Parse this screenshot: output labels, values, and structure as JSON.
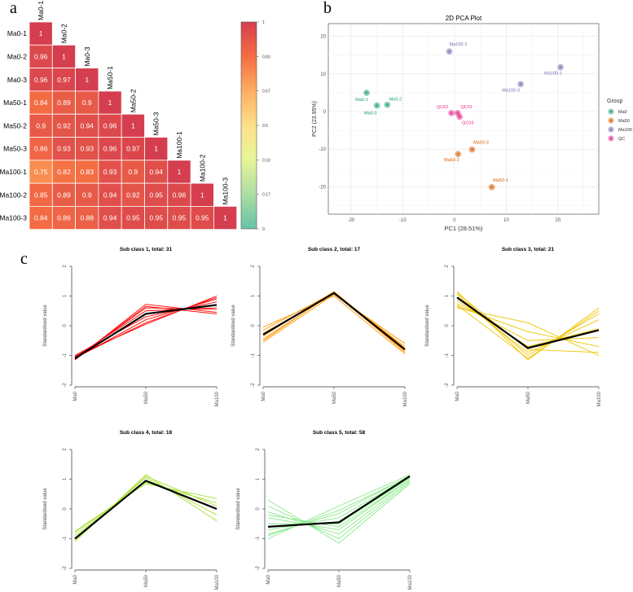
{
  "panel_labels": {
    "a": "a",
    "b": "b",
    "c": "c"
  },
  "chart_data": [
    {
      "type": "heatmap",
      "title": "",
      "labels": [
        "Ma0-1",
        "Ma0-2",
        "Ma0-3",
        "Ma50-1",
        "Ma50-2",
        "Ma50-3",
        "Ma100-1",
        "Ma100-2",
        "Ma100-3"
      ],
      "values": [
        [
          1
        ],
        [
          0.96,
          1
        ],
        [
          0.96,
          0.97,
          1
        ],
        [
          0.84,
          0.89,
          0.9,
          1
        ],
        [
          0.9,
          0.92,
          0.94,
          0.96,
          1
        ],
        [
          0.86,
          0.93,
          0.93,
          0.96,
          0.97,
          1
        ],
        [
          0.75,
          0.82,
          0.83,
          0.93,
          0.9,
          0.94,
          1
        ],
        [
          0.85,
          0.89,
          0.9,
          0.94,
          0.92,
          0.95,
          0.96,
          1
        ],
        [
          0.84,
          0.86,
          0.88,
          0.94,
          0.95,
          0.95,
          0.95,
          0.95,
          1
        ]
      ],
      "colorbar": {
        "ticks": [
          "1",
          "0.83",
          "0.67",
          "0.5",
          "0.33",
          "0.17",
          "0"
        ],
        "stops": [
          "#66c2a5",
          "#abdda4",
          "#e6f598",
          "#fee08b",
          "#fdae61",
          "#f46d43",
          "#d53e4f"
        ]
      }
    },
    {
      "type": "scatter",
      "title": "2D PCA Plot",
      "xlabel": "PC1 (28.51%)",
      "ylabel": "PC2 (23.95%)",
      "xlim": [
        -24.4,
        27.9
      ],
      "ylim": [
        -27.3,
        23.4
      ],
      "xticks": [
        -20,
        -10,
        0,
        10,
        20
      ],
      "yticks": [
        -20,
        -10,
        0,
        10,
        20
      ],
      "grid": true,
      "legend_title": "Group",
      "legend": "right",
      "groups": [
        {
          "name": "Ma0",
          "color": "#1b9e77"
        },
        {
          "name": "Ma50",
          "color": "#d95f02"
        },
        {
          "name": "Ma100",
          "color": "#7570b3"
        },
        {
          "name": "QC",
          "color": "#e7298a"
        }
      ],
      "points": [
        {
          "label": "Ma0-1",
          "group": 0,
          "x": -17,
          "y": 5
        },
        {
          "label": "Ma0-2",
          "group": 0,
          "x": -13,
          "y": 1.8
        },
        {
          "label": "Ma0-3",
          "group": 0,
          "x": -15,
          "y": 1.6
        },
        {
          "label": "Ma50-1",
          "group": 1,
          "x": 7.2,
          "y": -20.1
        },
        {
          "label": "Ma50-2",
          "group": 1,
          "x": 0.7,
          "y": -11.3
        },
        {
          "label": "Ma50-3",
          "group": 1,
          "x": 3.4,
          "y": -10.1
        },
        {
          "label": "Ma100-1",
          "group": 2,
          "x": 20.5,
          "y": 11.8
        },
        {
          "label": "Ma100-2",
          "group": 2,
          "x": -1,
          "y": 16
        },
        {
          "label": "Ma100-3",
          "group": 2,
          "x": 12.8,
          "y": 7.3
        },
        {
          "label": "QC01",
          "group": 3,
          "x": 0.6,
          "y": -0.4
        },
        {
          "label": "QC02",
          "group": 3,
          "x": -0.6,
          "y": -0.4
        },
        {
          "label": "QC03",
          "group": 3,
          "x": 1,
          "y": -1.4
        }
      ]
    },
    {
      "type": "line",
      "ylabel": "Standardised value",
      "categories": [
        "Ma0",
        "Ma50",
        "Ma100"
      ],
      "ylim": [
        -2,
        2
      ],
      "yticks": [
        "-2",
        "-1",
        "0",
        "1",
        "2"
      ],
      "classes": [
        {
          "title": "Sub class 1, total: 31",
          "color": "#ff0000",
          "mean": [
            -1.1,
            0.4,
            0.7
          ],
          "lines": [
            [
              -1.15,
              0.72,
              0.45
            ],
            [
              -1.1,
              0.6,
              0.55
            ],
            [
              -1.05,
              0.5,
              0.6
            ],
            [
              -1.12,
              0.4,
              0.7
            ],
            [
              -1.0,
              0.3,
              0.8
            ],
            [
              -1.1,
              0.2,
              0.9
            ],
            [
              -1.08,
              0.1,
              0.95
            ],
            [
              -1.02,
              0.05,
              1.0
            ],
            [
              -1.13,
              0.65,
              0.4
            ]
          ]
        },
        {
          "title": "Sub class 2, total: 17",
          "color": "#ff9900",
          "mean": [
            -0.3,
            1.1,
            -0.8
          ],
          "lines": [
            [
              -0.55,
              1.05,
              -0.6
            ],
            [
              -0.45,
              1.1,
              -0.7
            ],
            [
              -0.35,
              1.15,
              -0.8
            ],
            [
              -0.25,
              1.08,
              -0.85
            ],
            [
              -0.15,
              1.12,
              -0.9
            ],
            [
              -0.05,
              1.0,
              -0.95
            ],
            [
              -0.5,
              1.13,
              -0.75
            ]
          ]
        },
        {
          "title": "Sub class 3, total: 21",
          "color": "#f0c400",
          "mean": [
            0.95,
            -0.75,
            -0.15
          ],
          "lines": [
            [
              1.15,
              -1.15,
              0.6
            ],
            [
              1.05,
              -1.0,
              0.4
            ],
            [
              0.95,
              -0.9,
              0.2
            ],
            [
              0.85,
              -0.7,
              -0.1
            ],
            [
              0.75,
              -0.5,
              -0.4
            ],
            [
              0.65,
              -0.2,
              -0.7
            ],
            [
              0.6,
              0.1,
              -1.0
            ],
            [
              1.1,
              -0.8,
              -0.9
            ],
            [
              0.7,
              -1.1,
              0.5
            ]
          ]
        },
        {
          "title": "Sub class 4, total: 18",
          "color": "#a8e030",
          "mean": [
            -1.0,
            0.95,
            0.0
          ],
          "lines": [
            [
              -1.1,
              1.15,
              -0.4
            ],
            [
              -1.0,
              1.05,
              -0.2
            ],
            [
              -0.9,
              0.95,
              0.0
            ],
            [
              -0.8,
              0.9,
              0.2
            ],
            [
              -0.75,
              0.85,
              0.35
            ],
            [
              -1.05,
              1.1,
              0.1
            ]
          ]
        },
        {
          "title": "Sub class 5, total: 58",
          "color": "#88e888",
          "mean": [
            -0.6,
            -0.45,
            1.1
          ],
          "lines": [
            [
              0.3,
              -1.15,
              0.85
            ],
            [
              0.1,
              -1.0,
              0.9
            ],
            [
              -0.1,
              -0.85,
              0.95
            ],
            [
              -0.3,
              -0.7,
              1.0
            ],
            [
              -0.5,
              -0.5,
              1.05
            ],
            [
              -0.7,
              -0.3,
              1.1
            ],
            [
              -0.85,
              -0.15,
              1.12
            ],
            [
              -1.0,
              0.1,
              1.15
            ],
            [
              -0.2,
              -0.6,
              1.0
            ],
            [
              -0.9,
              -0.05,
              1.1
            ]
          ]
        }
      ]
    }
  ]
}
